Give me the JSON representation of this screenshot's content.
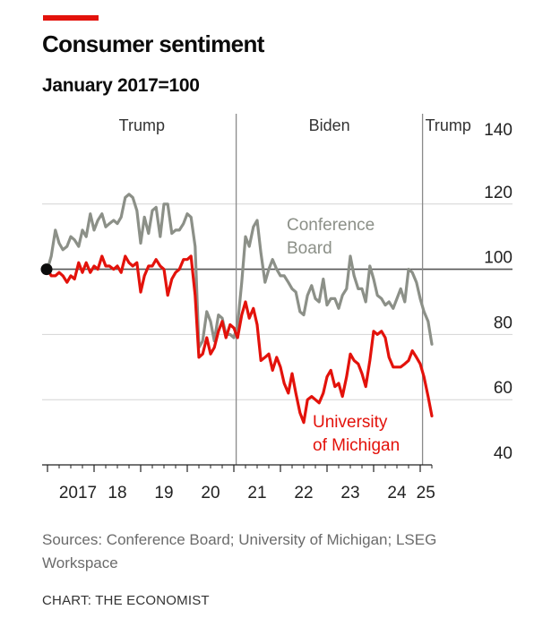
{
  "header": {
    "title": "Consumer sentiment",
    "subtitle": "January 2017=100"
  },
  "footer": {
    "sources": "Sources: Conference Board; University of Michigan; LSEG Workspace",
    "credit": "CHART: THE ECONOMIST"
  },
  "colors": {
    "accent": "#e3120b",
    "conference_board": "#8c9088",
    "university_of_michigan": "#e3120b",
    "grid": "#d4d4d4",
    "baseline": "#555555"
  },
  "chart_data": {
    "type": "line",
    "title": "Consumer sentiment",
    "subtitle": "January 2017=100",
    "xlabel": "",
    "ylabel": "",
    "xlim": [
      2017.0,
      2025.25
    ],
    "ylim": [
      40,
      140
    ],
    "yticks": [
      40,
      60,
      80,
      100,
      120,
      140
    ],
    "y_axis_side": "right",
    "xticks": [
      2017,
      2018,
      2019,
      2020,
      2021,
      2022,
      2023,
      2024,
      2025
    ],
    "xtick_labels": [
      "2017",
      "18",
      "19",
      "20",
      "21",
      "22",
      "23",
      "24",
      "25"
    ],
    "grid": true,
    "reference_value": 100,
    "periods": [
      {
        "label": "Trump",
        "start": 2017.0,
        "end": 2021.05
      },
      {
        "label": "Biden",
        "start": 2021.05,
        "end": 2025.05
      },
      {
        "label": "Trump",
        "start": 2025.05,
        "end": 2025.25
      }
    ],
    "series": [
      {
        "name": "Conference Board",
        "color": "#8c9088",
        "points": [
          [
            2017.0,
            100
          ],
          [
            2017.08,
            104
          ],
          [
            2017.17,
            112
          ],
          [
            2017.25,
            108
          ],
          [
            2017.33,
            106
          ],
          [
            2017.42,
            107
          ],
          [
            2017.5,
            110
          ],
          [
            2017.58,
            109
          ],
          [
            2017.67,
            107
          ],
          [
            2017.75,
            112
          ],
          [
            2017.83,
            110
          ],
          [
            2017.92,
            117
          ],
          [
            2018.0,
            112
          ],
          [
            2018.08,
            115
          ],
          [
            2018.17,
            117
          ],
          [
            2018.25,
            113
          ],
          [
            2018.33,
            114
          ],
          [
            2018.42,
            115
          ],
          [
            2018.5,
            114
          ],
          [
            2018.58,
            116
          ],
          [
            2018.67,
            122
          ],
          [
            2018.75,
            123
          ],
          [
            2018.83,
            122
          ],
          [
            2018.92,
            118
          ],
          [
            2019.0,
            108
          ],
          [
            2019.08,
            116
          ],
          [
            2019.17,
            111
          ],
          [
            2019.25,
            118
          ],
          [
            2019.33,
            119
          ],
          [
            2019.42,
            110
          ],
          [
            2019.5,
            120
          ],
          [
            2019.58,
            120
          ],
          [
            2019.67,
            111
          ],
          [
            2019.75,
            112
          ],
          [
            2019.83,
            112
          ],
          [
            2019.92,
            114
          ],
          [
            2020.0,
            117
          ],
          [
            2020.08,
            116
          ],
          [
            2020.17,
            107
          ],
          [
            2020.25,
            76
          ],
          [
            2020.33,
            78
          ],
          [
            2020.42,
            87
          ],
          [
            2020.5,
            84
          ],
          [
            2020.58,
            78
          ],
          [
            2020.67,
            86
          ],
          [
            2020.75,
            85
          ],
          [
            2020.83,
            80
          ],
          [
            2020.92,
            80
          ],
          [
            2021.0,
            79
          ],
          [
            2021.08,
            83
          ],
          [
            2021.17,
            96
          ],
          [
            2021.25,
            110
          ],
          [
            2021.33,
            107
          ],
          [
            2021.42,
            113
          ],
          [
            2021.5,
            115
          ],
          [
            2021.58,
            105
          ],
          [
            2021.67,
            96
          ],
          [
            2021.75,
            100
          ],
          [
            2021.83,
            103
          ],
          [
            2021.92,
            100
          ],
          [
            2022.0,
            98
          ],
          [
            2022.08,
            98
          ],
          [
            2022.17,
            96
          ],
          [
            2022.25,
            94
          ],
          [
            2022.33,
            93
          ],
          [
            2022.42,
            87
          ],
          [
            2022.5,
            86
          ],
          [
            2022.58,
            92
          ],
          [
            2022.67,
            95
          ],
          [
            2022.75,
            91
          ],
          [
            2022.83,
            90
          ],
          [
            2022.92,
            97
          ],
          [
            2023.0,
            89
          ],
          [
            2023.08,
            91
          ],
          [
            2023.17,
            91
          ],
          [
            2023.25,
            88
          ],
          [
            2023.33,
            92
          ],
          [
            2023.42,
            94
          ],
          [
            2023.5,
            104
          ],
          [
            2023.58,
            98
          ],
          [
            2023.67,
            94
          ],
          [
            2023.75,
            94
          ],
          [
            2023.83,
            90
          ],
          [
            2023.92,
            101
          ],
          [
            2024.0,
            97
          ],
          [
            2024.08,
            92
          ],
          [
            2024.17,
            91
          ],
          [
            2024.25,
            89
          ],
          [
            2024.33,
            90
          ],
          [
            2024.42,
            88
          ],
          [
            2024.5,
            91
          ],
          [
            2024.58,
            94
          ],
          [
            2024.67,
            90
          ],
          [
            2024.75,
            100
          ],
          [
            2024.83,
            99
          ],
          [
            2024.92,
            96
          ],
          [
            2025.0,
            91
          ],
          [
            2025.08,
            87
          ],
          [
            2025.17,
            84
          ],
          [
            2025.25,
            77
          ]
        ]
      },
      {
        "name": "University of Michigan",
        "label_text": "University of Michigan",
        "color": "#e3120b",
        "points": [
          [
            2017.0,
            100
          ],
          [
            2017.08,
            98
          ],
          [
            2017.17,
            98
          ],
          [
            2017.25,
            99
          ],
          [
            2017.33,
            98
          ],
          [
            2017.42,
            96
          ],
          [
            2017.5,
            98
          ],
          [
            2017.58,
            97
          ],
          [
            2017.67,
            102
          ],
          [
            2017.75,
            99
          ],
          [
            2017.83,
            102
          ],
          [
            2017.92,
            99
          ],
          [
            2018.0,
            101
          ],
          [
            2018.08,
            100
          ],
          [
            2018.17,
            104
          ],
          [
            2018.25,
            101
          ],
          [
            2018.33,
            101
          ],
          [
            2018.42,
            100
          ],
          [
            2018.5,
            101
          ],
          [
            2018.58,
            99
          ],
          [
            2018.67,
            104
          ],
          [
            2018.75,
            102
          ],
          [
            2018.83,
            101
          ],
          [
            2018.92,
            102
          ],
          [
            2019.0,
            93
          ],
          [
            2019.08,
            98
          ],
          [
            2019.17,
            101
          ],
          [
            2019.25,
            101
          ],
          [
            2019.33,
            103
          ],
          [
            2019.42,
            101
          ],
          [
            2019.5,
            100
          ],
          [
            2019.58,
            92
          ],
          [
            2019.67,
            97
          ],
          [
            2019.75,
            99
          ],
          [
            2019.83,
            100
          ],
          [
            2019.92,
            103
          ],
          [
            2020.0,
            103
          ],
          [
            2020.08,
            104
          ],
          [
            2020.17,
            92
          ],
          [
            2020.25,
            73
          ],
          [
            2020.33,
            74
          ],
          [
            2020.42,
            79
          ],
          [
            2020.5,
            74
          ],
          [
            2020.58,
            76
          ],
          [
            2020.67,
            81
          ],
          [
            2020.75,
            84
          ],
          [
            2020.83,
            79
          ],
          [
            2020.92,
            83
          ],
          [
            2021.0,
            82
          ],
          [
            2021.08,
            79
          ],
          [
            2021.17,
            86
          ],
          [
            2021.25,
            90
          ],
          [
            2021.33,
            85
          ],
          [
            2021.42,
            88
          ],
          [
            2021.5,
            83
          ],
          [
            2021.58,
            72
          ],
          [
            2021.67,
            73
          ],
          [
            2021.75,
            74
          ],
          [
            2021.83,
            69
          ],
          [
            2021.92,
            73
          ],
          [
            2022.0,
            70
          ],
          [
            2022.08,
            65
          ],
          [
            2022.17,
            62
          ],
          [
            2022.25,
            68
          ],
          [
            2022.33,
            62
          ],
          [
            2022.42,
            56
          ],
          [
            2022.5,
            53
          ],
          [
            2022.58,
            60
          ],
          [
            2022.67,
            61
          ],
          [
            2022.75,
            60
          ],
          [
            2022.83,
            59
          ],
          [
            2022.92,
            62
          ],
          [
            2023.0,
            67
          ],
          [
            2023.08,
            69
          ],
          [
            2023.17,
            64
          ],
          [
            2023.25,
            65
          ],
          [
            2023.33,
            61
          ],
          [
            2023.42,
            67
          ],
          [
            2023.5,
            74
          ],
          [
            2023.58,
            72
          ],
          [
            2023.67,
            71
          ],
          [
            2023.75,
            68
          ],
          [
            2023.83,
            64
          ],
          [
            2023.92,
            72
          ],
          [
            2024.0,
            81
          ],
          [
            2024.08,
            80
          ],
          [
            2024.17,
            81
          ],
          [
            2024.25,
            79
          ],
          [
            2024.33,
            73
          ],
          [
            2024.42,
            70
          ],
          [
            2024.5,
            70
          ],
          [
            2024.58,
            70
          ],
          [
            2024.67,
            71
          ],
          [
            2024.75,
            72
          ],
          [
            2024.83,
            75
          ],
          [
            2024.92,
            73
          ],
          [
            2025.0,
            71
          ],
          [
            2025.08,
            67
          ],
          [
            2025.17,
            61
          ],
          [
            2025.25,
            55
          ]
        ]
      }
    ]
  }
}
